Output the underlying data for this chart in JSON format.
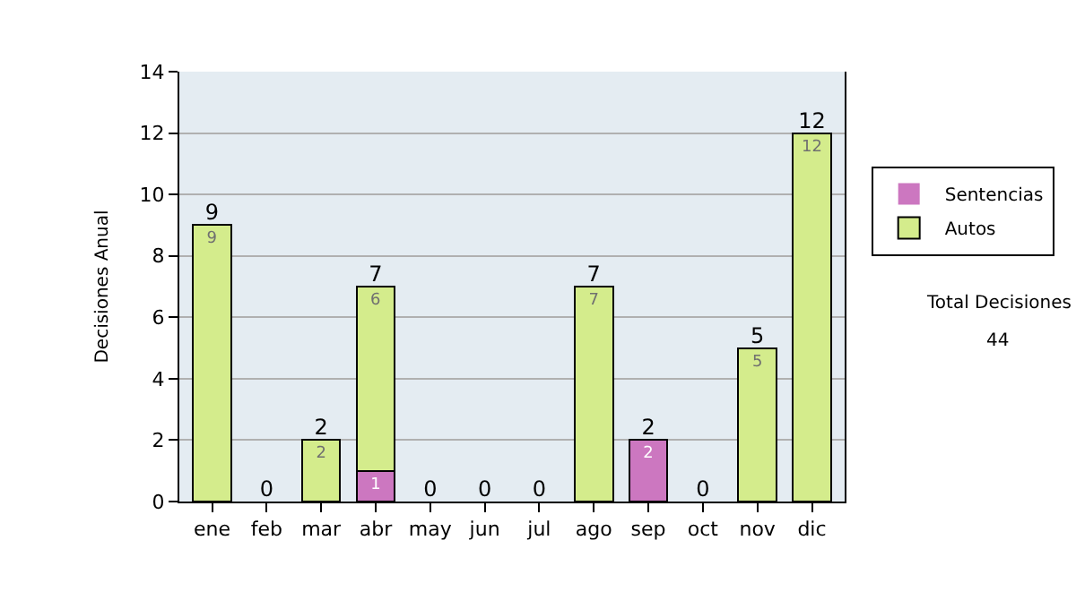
{
  "chart_data": {
    "type": "bar",
    "ylabel": "Decisiones Anual",
    "categories": [
      "ene",
      "feb",
      "mar",
      "abr",
      "may",
      "jun",
      "jul",
      "ago",
      "sep",
      "oct",
      "nov",
      "dic"
    ],
    "series": [
      {
        "name": "Sentencias",
        "color": "#cc77c0",
        "values": [
          0,
          0,
          0,
          1,
          0,
          0,
          0,
          0,
          2,
          0,
          0,
          0
        ],
        "value_labels": [
          null,
          null,
          null,
          "1",
          null,
          null,
          null,
          null,
          "2",
          null,
          null,
          null
        ]
      },
      {
        "name": "Autos",
        "color": "#d4ec8c",
        "values": [
          9,
          0,
          2,
          6,
          0,
          0,
          0,
          7,
          0,
          0,
          5,
          12
        ],
        "value_labels": [
          "9",
          null,
          "2",
          "6",
          null,
          null,
          null,
          "7",
          null,
          null,
          "5",
          "12"
        ]
      }
    ],
    "stacked": true,
    "totals": [
      "9",
      "0",
      "2",
      "7",
      "0",
      "0",
      "0",
      "7",
      "2",
      "0",
      "5",
      "12"
    ],
    "ylim": [
      0,
      14
    ],
    "yticks": [
      0,
      2,
      4,
      6,
      8,
      10,
      12,
      14
    ],
    "grid": "y",
    "legend": "right",
    "annotations": [
      "Total Decisiones",
      "44"
    ]
  }
}
